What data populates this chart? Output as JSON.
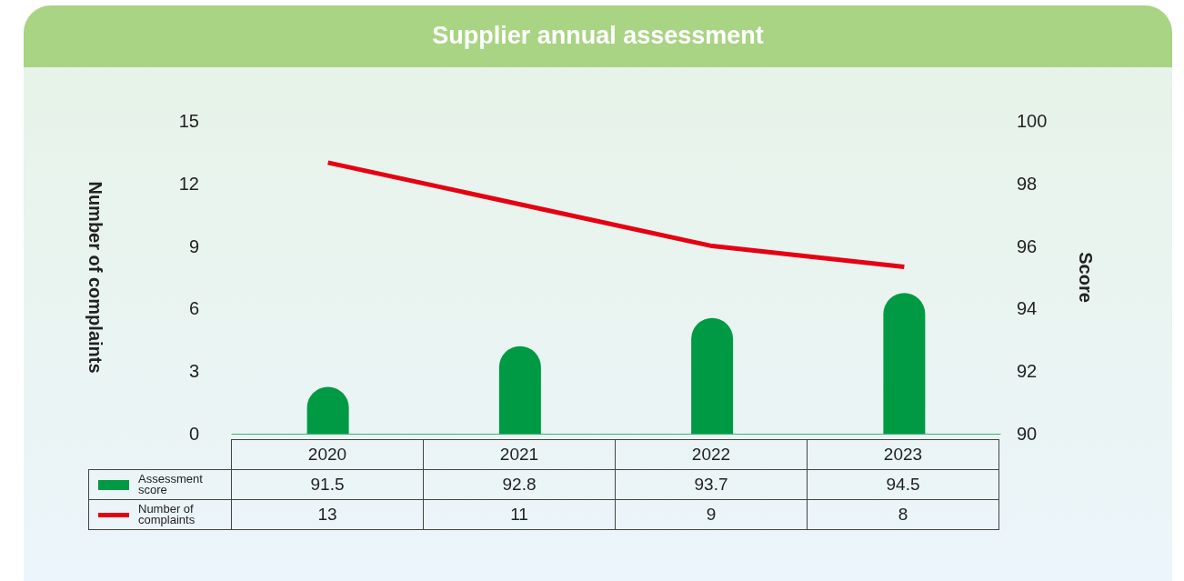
{
  "chart_data": {
    "type": "bar",
    "title": "Supplier annual assessment",
    "ylabel": "Number of complaints",
    "y2label": "Score",
    "categories": [
      "2020",
      "2021",
      "2022",
      "2023"
    ],
    "series": [
      {
        "name": "Assessment score",
        "axis": "y2",
        "color": "#009a44",
        "values": [
          91.5,
          92.8,
          93.7,
          94.5
        ]
      },
      {
        "name": "Number of complaints",
        "type": "line",
        "axis": "y",
        "color": "#e60012",
        "values": [
          13,
          11,
          9,
          8
        ]
      }
    ],
    "ylim": [
      0,
      15
    ],
    "yticks": [
      0,
      3,
      6,
      9,
      12,
      15
    ],
    "y2lim": [
      90,
      100
    ],
    "y2ticks": [
      90,
      92,
      94,
      96,
      98,
      100
    ],
    "grid": false,
    "legend": "bottom left",
    "marker": "none",
    "data_labels": true
  }
}
